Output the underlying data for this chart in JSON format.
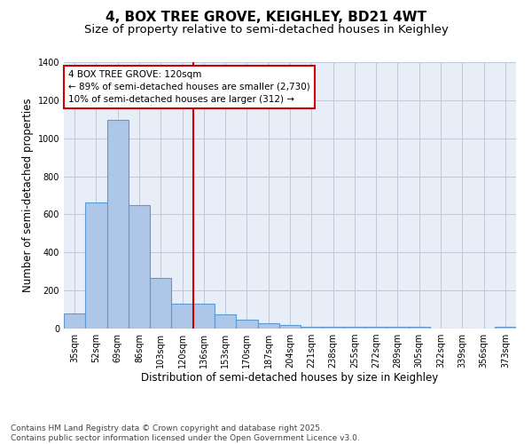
{
  "title": "4, BOX TREE GROVE, KEIGHLEY, BD21 4WT",
  "subtitle": "Size of property relative to semi-detached houses in Keighley",
  "xlabel": "Distribution of semi-detached houses by size in Keighley",
  "ylabel": "Number of semi-detached properties",
  "bar_labels": [
    "35sqm",
    "52sqm",
    "69sqm",
    "86sqm",
    "103sqm",
    "120sqm",
    "136sqm",
    "153sqm",
    "170sqm",
    "187sqm",
    "204sqm",
    "221sqm",
    "238sqm",
    "255sqm",
    "272sqm",
    "289sqm",
    "305sqm",
    "322sqm",
    "339sqm",
    "356sqm",
    "373sqm"
  ],
  "bar_values": [
    80,
    665,
    1095,
    650,
    265,
    130,
    130,
    75,
    45,
    30,
    20,
    10,
    10,
    10,
    10,
    10,
    10,
    0,
    0,
    0,
    10
  ],
  "bar_color": "#aec6e8",
  "bar_edge_color": "#5b9bd5",
  "highlight_line_color": "#cc0000",
  "annotation_text": "4 BOX TREE GROVE: 120sqm\n← 89% of semi-detached houses are smaller (2,730)\n10% of semi-detached houses are larger (312) →",
  "annotation_box_color": "#ffffff",
  "annotation_box_edge_color": "#cc0000",
  "ylim": [
    0,
    1400
  ],
  "yticks": [
    0,
    200,
    400,
    600,
    800,
    1000,
    1200,
    1400
  ],
  "grid_color": "#c0c8d8",
  "background_color": "#e8eef8",
  "footer_text": "Contains HM Land Registry data © Crown copyright and database right 2025.\nContains public sector information licensed under the Open Government Licence v3.0.",
  "title_fontsize": 11,
  "subtitle_fontsize": 9.5,
  "axis_label_fontsize": 8.5,
  "tick_fontsize": 7,
  "annotation_fontsize": 7.5,
  "footer_fontsize": 6.5
}
